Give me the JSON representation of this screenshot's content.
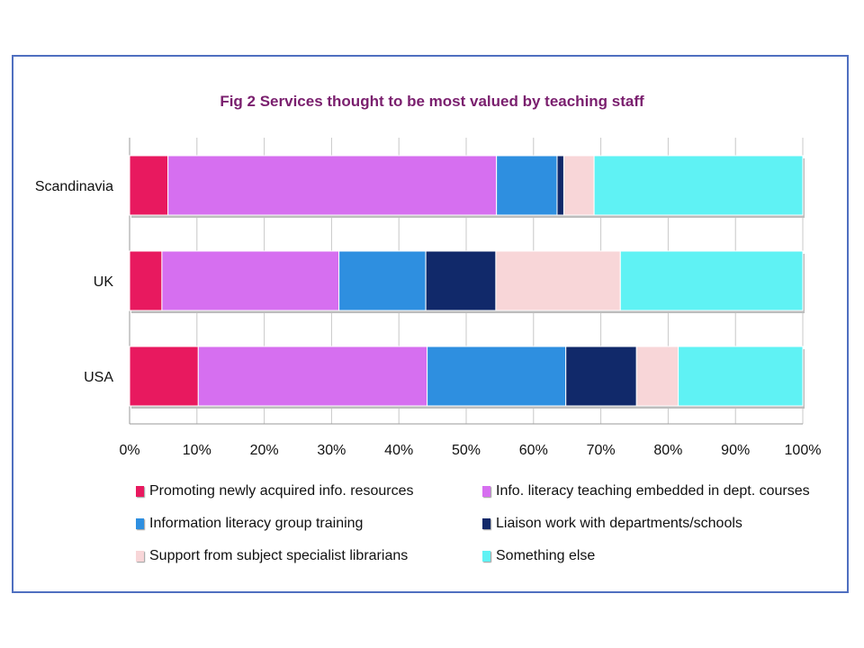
{
  "chart_data": {
    "type": "bar",
    "orientation": "horizontal",
    "stacked": "percent",
    "title": "Fig 2 Services thought to be most valued by teaching staff",
    "categories": [
      "Scandinavia",
      "UK",
      "USA"
    ],
    "x_ticks": [
      "0%",
      "10%",
      "20%",
      "30%",
      "40%",
      "50%",
      "60%",
      "70%",
      "80%",
      "90%",
      "100%"
    ],
    "xlim": [
      0,
      100
    ],
    "grid": true,
    "legend_position": "bottom",
    "series": [
      {
        "name": "Promoting newly acquired info. resources",
        "color": "#e8195f",
        "values": [
          5.7,
          4.8,
          10.2
        ]
      },
      {
        "name": "Info. literacy teaching embedded in dept. courses",
        "color": "#d66ff0",
        "values": [
          48.8,
          26.3,
          34.0
        ]
      },
      {
        "name": "Information literacy group training",
        "color": "#2e8fe0",
        "values": [
          9.0,
          12.9,
          20.6
        ]
      },
      {
        "name": "Liaison work with departments/schools",
        "color": "#11296a",
        "values": [
          1.0,
          10.4,
          10.5
        ]
      },
      {
        "name": "Support from subject specialist librarians",
        "color": "#f8d6d8",
        "values": [
          4.5,
          18.5,
          6.2
        ]
      },
      {
        "name": "Something else",
        "color": "#5ff2f4",
        "values": [
          31.0,
          27.1,
          18.5
        ]
      }
    ]
  }
}
